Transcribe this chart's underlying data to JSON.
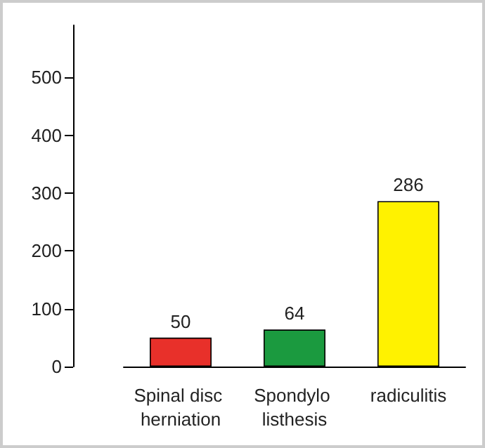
{
  "chart_data": {
    "type": "bar",
    "categories": [
      "Spinal disc herniation",
      "Spondylo listhesis",
      "radiculitis"
    ],
    "values": [
      50,
      64,
      286
    ],
    "colors": [
      "#e8302a",
      "#1b9a3f",
      "#fff200"
    ],
    "ylim": [
      0,
      590
    ],
    "yticks": [
      0,
      100,
      200,
      300,
      400,
      500
    ],
    "grid": false,
    "data_labels": true
  }
}
